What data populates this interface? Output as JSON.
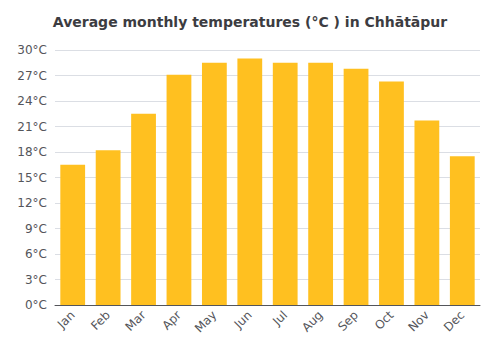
{
  "chart_data": {
    "type": "bar",
    "title": "Average monthly temperatures (°C ) in Chhātāpur",
    "categories": [
      "Jan",
      "Feb",
      "Mar",
      "Apr",
      "May",
      "Jun",
      "Jul",
      "Aug",
      "Sep",
      "Oct",
      "Nov",
      "Dec"
    ],
    "values": [
      16.5,
      18.2,
      22.5,
      27.1,
      28.5,
      29.0,
      28.5,
      28.5,
      27.8,
      26.3,
      21.7,
      17.5
    ],
    "color": "#FFC020",
    "ylim": [
      0,
      30
    ],
    "yticks": [
      {
        "value": 0,
        "label": "0°C"
      },
      {
        "value": 3,
        "label": "3°C"
      },
      {
        "value": 6,
        "label": "6°C"
      },
      {
        "value": 9,
        "label": "9°C"
      },
      {
        "value": 12,
        "label": "12°C"
      },
      {
        "value": 15,
        "label": "15°C"
      },
      {
        "value": 18,
        "label": "18°C"
      },
      {
        "value": 21,
        "label": "21°C"
      },
      {
        "value": 24,
        "label": "24°C"
      },
      {
        "value": 27,
        "label": "27°C"
      },
      {
        "value": 30,
        "label": "30°C"
      }
    ],
    "grid": true
  }
}
